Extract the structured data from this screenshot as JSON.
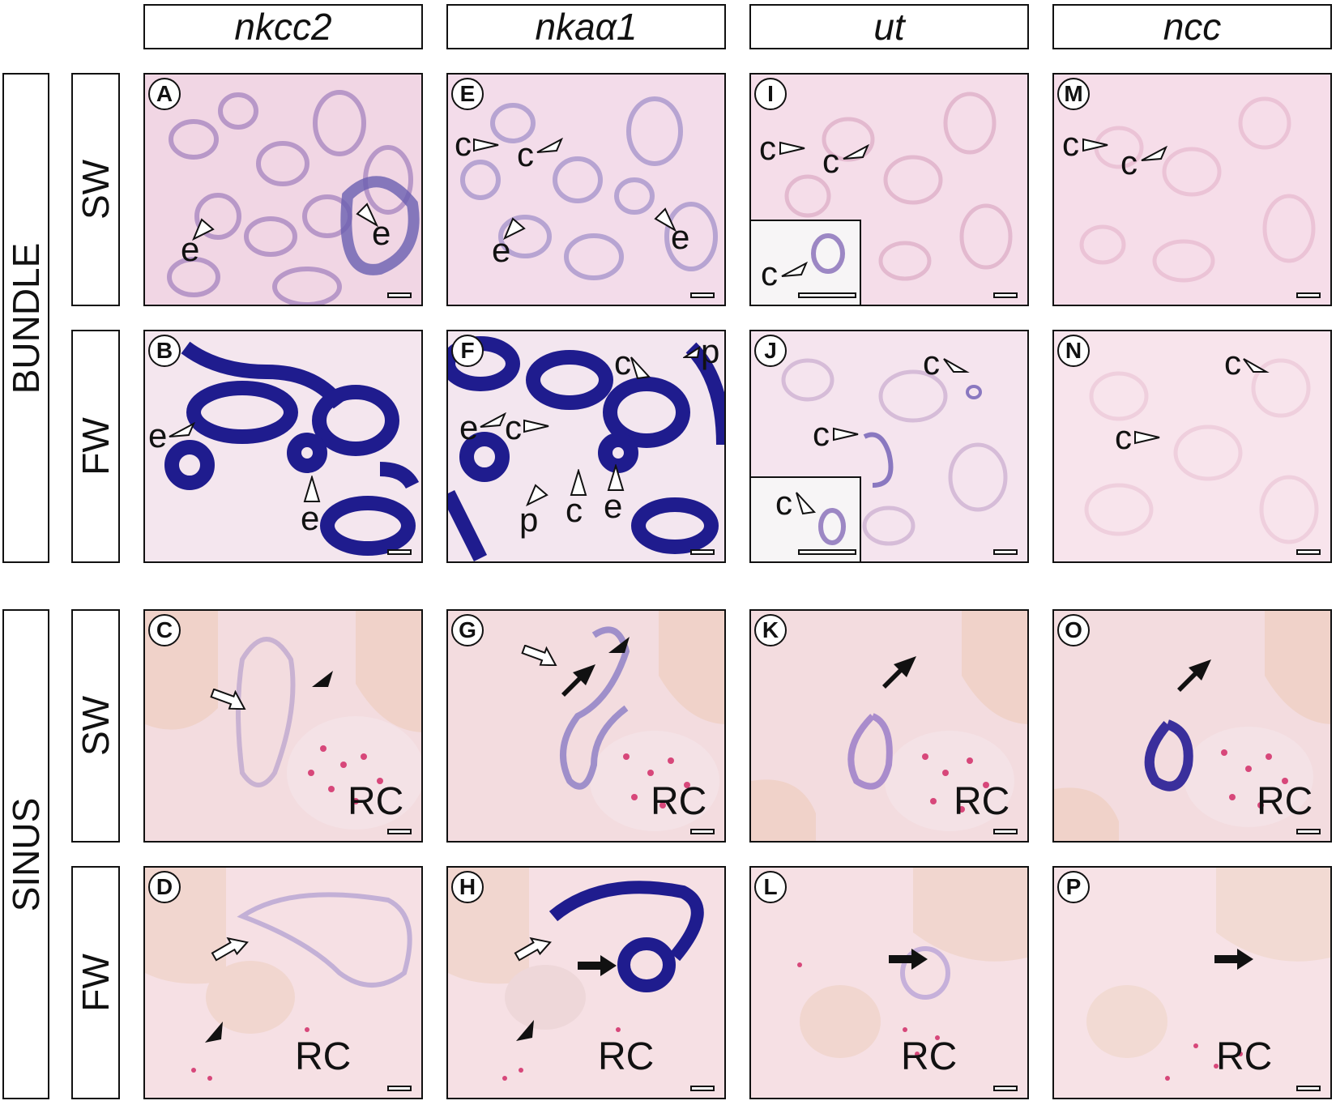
{
  "columns": [
    "nkcc2",
    "nkaα1",
    "ut",
    "ncc"
  ],
  "groups": [
    "BUNDLE",
    "SINUS"
  ],
  "rows": [
    "SW",
    "FW",
    "SW",
    "FW"
  ],
  "panels": {
    "A": "A",
    "B": "B",
    "C": "C",
    "D": "D",
    "E": "E",
    "F": "F",
    "G": "G",
    "H": "H",
    "I": "I",
    "J": "J",
    "K": "K",
    "L": "L",
    "M": "M",
    "N": "N",
    "O": "O",
    "P": "P"
  },
  "marks": {
    "e": "e",
    "c": "c",
    "p": "p",
    "rc": "RC"
  },
  "colors": {
    "strong_stain": "#1a1a8c",
    "weak_stain": "#8a78c0",
    "tissue_pink": "#f4d8e3",
    "sinus_bg": "#f6e2e6"
  }
}
